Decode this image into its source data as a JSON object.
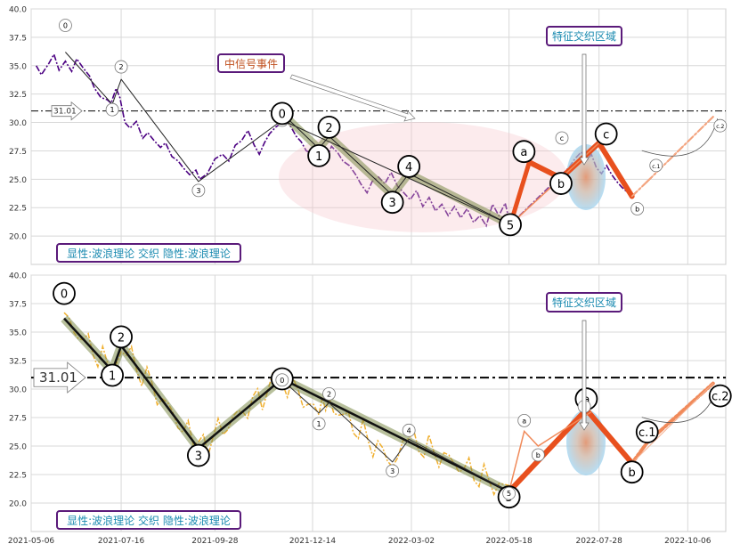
{
  "chart_data": {
    "type": "line",
    "x_ticks": [
      "2021-05-06",
      "2021-07-16",
      "2021-09-28",
      "2021-12-14",
      "2022-03-02",
      "2022-05-18",
      "2022-07-28",
      "2022-10-06"
    ],
    "xlim": [
      "2021-05-06",
      "2022-11-05"
    ],
    "panels": [
      {
        "name": "top",
        "ylim": [
          17.5,
          40.0
        ],
        "y_ticks": [
          "20.0",
          "22.5",
          "25.0",
          "27.5",
          "30.0",
          "32.5",
          "35.0",
          "37.5",
          "40.0"
        ],
        "price_color": "#4b0082",
        "caption": "显性:波浪理论 交织 隐性:波浪理论",
        "annotations": {
          "event_label": "中信号事件",
          "zone_label": "特征交织区域",
          "level_label": "31.01"
        },
        "price": [
          [
            "2021-05-10",
            35.0
          ],
          [
            "2021-05-14",
            34.2
          ],
          [
            "2021-05-20",
            35.2
          ],
          [
            "2021-05-24",
            36.0
          ],
          [
            "2021-05-28",
            34.6
          ],
          [
            "2021-06-02",
            35.4
          ],
          [
            "2021-06-07",
            34.5
          ],
          [
            "2021-06-11",
            35.6
          ],
          [
            "2021-06-16",
            34.8
          ],
          [
            "2021-06-21",
            34.1
          ],
          [
            "2021-06-25",
            33.0
          ],
          [
            "2021-06-30",
            32.2
          ],
          [
            "2021-07-05",
            32.0
          ],
          [
            "2021-07-08",
            31.7
          ],
          [
            "2021-07-12",
            33.0
          ],
          [
            "2021-07-15",
            32.2
          ],
          [
            "2021-07-19",
            30.0
          ],
          [
            "2021-07-23",
            29.5
          ],
          [
            "2021-07-28",
            30.1
          ],
          [
            "2021-08-02",
            28.6
          ],
          [
            "2021-08-06",
            29.1
          ],
          [
            "2021-08-11",
            28.4
          ],
          [
            "2021-08-16",
            27.8
          ],
          [
            "2021-08-20",
            28.2
          ],
          [
            "2021-08-25",
            27.0
          ],
          [
            "2021-08-30",
            26.6
          ],
          [
            "2021-09-03",
            26.0
          ],
          [
            "2021-09-08",
            25.4
          ],
          [
            "2021-09-13",
            25.8
          ],
          [
            "2021-09-16",
            25.0
          ],
          [
            "2021-09-22",
            25.5
          ],
          [
            "2021-09-28",
            26.8
          ],
          [
            "2021-10-04",
            27.2
          ],
          [
            "2021-10-09",
            26.6
          ],
          [
            "2021-10-14",
            28.0
          ],
          [
            "2021-10-19",
            28.4
          ],
          [
            "2021-10-24",
            29.3
          ],
          [
            "2021-10-29",
            28.0
          ],
          [
            "2021-11-02",
            27.2
          ],
          [
            "2021-11-06",
            28.2
          ],
          [
            "2021-11-10",
            29.0
          ],
          [
            "2021-11-15",
            29.6
          ],
          [
            "2021-11-19",
            29.9
          ],
          [
            "2021-11-23",
            30.2
          ],
          [
            "2021-11-27",
            29.6
          ],
          [
            "2021-12-01",
            28.8
          ],
          [
            "2021-12-05",
            28.3
          ],
          [
            "2021-12-09",
            27.5
          ],
          [
            "2021-12-13",
            27.3
          ],
          [
            "2021-12-17",
            28.0
          ],
          [
            "2021-12-21",
            27.6
          ],
          [
            "2021-12-25",
            26.8
          ],
          [
            "2021-12-29",
            27.9
          ],
          [
            "2022-01-03",
            27.3
          ],
          [
            "2022-01-07",
            26.6
          ],
          [
            "2022-01-12",
            26.2
          ],
          [
            "2022-01-17",
            25.4
          ],
          [
            "2022-01-21",
            24.6
          ],
          [
            "2022-01-26",
            23.8
          ],
          [
            "2022-01-30",
            24.8
          ],
          [
            "2022-02-04",
            25.2
          ],
          [
            "2022-02-09",
            24.6
          ],
          [
            "2022-02-14",
            25.6
          ],
          [
            "2022-02-19",
            24.4
          ],
          [
            "2022-02-24",
            23.8
          ],
          [
            "2022-03-01",
            23.2
          ],
          [
            "2022-03-06",
            24.0
          ],
          [
            "2022-03-11",
            22.6
          ],
          [
            "2022-03-16",
            23.4
          ],
          [
            "2022-03-21",
            22.2
          ],
          [
            "2022-03-26",
            22.8
          ],
          [
            "2022-03-31",
            21.8
          ],
          [
            "2022-04-05",
            22.6
          ],
          [
            "2022-04-10",
            21.6
          ],
          [
            "2022-04-15",
            22.4
          ],
          [
            "2022-04-20",
            21.2
          ],
          [
            "2022-04-25",
            21.8
          ],
          [
            "2022-04-30",
            20.9
          ],
          [
            "2022-05-05",
            22.8
          ],
          [
            "2022-05-10",
            21.8
          ],
          [
            "2022-05-15",
            22.9
          ],
          [
            "2022-05-19",
            21.0
          ],
          [
            "2022-07-04",
            26.0
          ],
          [
            "2022-07-09",
            26.8
          ],
          [
            "2022-07-14",
            27.4
          ],
          [
            "2022-07-18",
            26.6
          ],
          [
            "2022-07-22",
            27.2
          ],
          [
            "2022-07-26",
            26.0
          ],
          [
            "2022-07-30",
            25.5
          ],
          [
            "2022-08-03",
            26.2
          ],
          [
            "2022-08-07",
            25.4
          ],
          [
            "2022-08-11",
            24.8
          ],
          [
            "2022-08-15",
            24.3
          ],
          [
            "2022-08-19",
            23.9
          ],
          [
            "2022-08-22",
            23.6
          ]
        ],
        "wave_main": {
          "points": [
            [
              "2021-06-02",
              36.2
            ],
            [
              "2021-07-09",
              31.6
            ],
            [
              "2021-07-16",
              33.8
            ],
            [
              "2021-09-15",
              24.8
            ],
            [
              "2021-11-20",
              30.2
            ],
            [
              "2022-05-19",
              21.0
            ]
          ],
          "labels": [
            "0",
            "1",
            "2",
            "3",
            "4",
            "5"
          ],
          "color": "#333333",
          "size": "small"
        },
        "wave_sub": {
          "points": [
            [
              "2021-11-20",
              30.8
            ],
            [
              "2021-12-19",
              27.7
            ],
            [
              "2021-12-27",
              28.8
            ],
            [
              "2022-02-15",
              23.6
            ],
            [
              "2022-02-28",
              25.5
            ],
            [
              "2022-05-19",
              21.0
            ]
          ],
          "labels": [
            "0",
            "1",
            "2",
            "3",
            "4",
            "5"
          ],
          "color": "#333333",
          "size": "large"
        },
        "wave_abc": {
          "points": [
            [
              "2022-05-19",
              21.0
            ],
            [
              "2022-06-03",
              26.5
            ],
            [
              "2022-06-28",
              25.1
            ],
            [
              "2022-07-28",
              28.2
            ],
            [
              "2022-08-23",
              23.5
            ],
            [
              "2022-09-04",
              24.8
            ],
            [
              "2022-10-26",
              30.5
            ]
          ],
          "labels": [
            "",
            "a",
            "b",
            "c",
            "b",
            "c.1",
            "c.2"
          ],
          "color": "#e8501e"
        }
      },
      {
        "name": "bottom",
        "ylim": [
          17.5,
          40.0
        ],
        "y_ticks": [
          "20.0",
          "22.5",
          "25.0",
          "27.5",
          "30.0",
          "32.5",
          "35.0",
          "37.5",
          "40.0"
        ],
        "price_color": "#f0b030",
        "caption": "显性:波浪理论 交织 隐性:波浪理论",
        "annotations": {
          "zone_label": "特征交织区域",
          "level_label": "31.01"
        },
        "wave_main": {
          "points": [
            [
              "2021-06-01",
              36.2
            ],
            [
              "2021-07-09",
              31.6
            ],
            [
              "2021-07-16",
              33.8
            ],
            [
              "2021-09-15",
              24.8
            ],
            [
              "2021-11-20",
              30.9
            ],
            [
              "2022-05-18",
              21.0
            ]
          ],
          "labels": [
            "0",
            "1",
            "2",
            "3",
            "4",
            "5"
          ],
          "color": "#111111",
          "size": "large"
        },
        "wave_sub": {
          "points": [
            [
              "2021-11-20",
              30.8
            ],
            [
              "2021-12-19",
              27.9
            ],
            [
              "2021-12-27",
              28.8
            ],
            [
              "2022-02-15",
              23.6
            ],
            [
              "2022-02-28",
              25.6
            ],
            [
              "2022-05-18",
              21.0
            ]
          ],
          "labels": [
            "0",
            "1",
            "2",
            "3",
            "4",
            "5"
          ],
          "color": "#444444",
          "size": "small"
        },
        "wave_abc": {
          "points": [
            [
              "2022-05-18",
              21.0
            ],
            [
              "2022-07-18",
              28.2
            ],
            [
              "2022-08-23",
              23.5
            ],
            [
              "2022-09-04",
              25.3
            ],
            [
              "2022-10-26",
              30.5
            ]
          ],
          "labels": [
            "",
            "a",
            "b",
            "c.1",
            "c.2"
          ],
          "color": "#e8501e"
        },
        "wave_abc_small": {
          "points": [
            [
              "2022-05-30",
              26.3
            ],
            [
              "2022-06-10",
              25.0
            ],
            [
              "2022-07-22",
              28.0
            ]
          ],
          "labels": [
            "a",
            "b",
            "c"
          ]
        }
      }
    ],
    "level": 31.01,
    "grid": true
  }
}
